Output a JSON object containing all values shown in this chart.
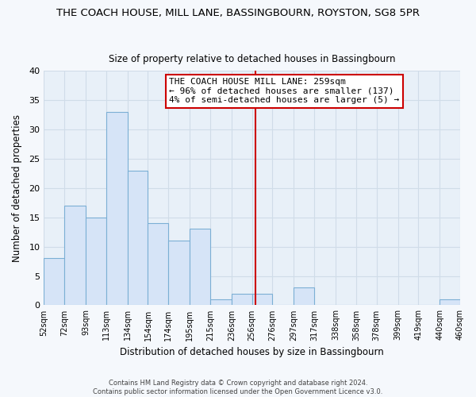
{
  "title": "THE COACH HOUSE, MILL LANE, BASSINGBOURN, ROYSTON, SG8 5PR",
  "subtitle": "Size of property relative to detached houses in Bassingbourn",
  "xlabel": "Distribution of detached houses by size in Bassingbourn",
  "ylabel": "Number of detached properties",
  "bar_edges": [
    52,
    72,
    93,
    113,
    134,
    154,
    174,
    195,
    215,
    236,
    256,
    276,
    297,
    317,
    338,
    358,
    378,
    399,
    419,
    440,
    460
  ],
  "bar_heights": [
    8,
    17,
    15,
    33,
    23,
    14,
    11,
    13,
    1,
    2,
    2,
    0,
    3,
    0,
    0,
    0,
    0,
    0,
    0,
    1
  ],
  "bar_color": "#d6e4f7",
  "bar_edge_color": "#7bafd4",
  "vline_x": 259,
  "vline_color": "#cc0000",
  "annotation_line1": "THE COACH HOUSE MILL LANE: 259sqm",
  "annotation_line2": "← 96% of detached houses are smaller (137)",
  "annotation_line3": "4% of semi-detached houses are larger (5) →",
  "annotation_box_color": "#ffffff",
  "annotation_box_edge": "#cc0000",
  "xlim": [
    52,
    460
  ],
  "ylim": [
    0,
    40
  ],
  "yticks": [
    0,
    5,
    10,
    15,
    20,
    25,
    30,
    35,
    40
  ],
  "xtick_labels": [
    "52sqm",
    "72sqm",
    "93sqm",
    "113sqm",
    "134sqm",
    "154sqm",
    "174sqm",
    "195sqm",
    "215sqm",
    "236sqm",
    "256sqm",
    "276sqm",
    "297sqm",
    "317sqm",
    "338sqm",
    "358sqm",
    "378sqm",
    "399sqm",
    "419sqm",
    "440sqm",
    "460sqm"
  ],
  "grid_color": "#d0dce8",
  "plot_bg_color": "#e8f0f8",
  "fig_bg_color": "#f5f8fc",
  "footer_text": "Contains HM Land Registry data © Crown copyright and database right 2024.\nContains public sector information licensed under the Open Government Licence v3.0.",
  "title_fontsize": 9.5,
  "subtitle_fontsize": 8.5,
  "xlabel_fontsize": 8.5,
  "ylabel_fontsize": 8.5,
  "tick_fontsize": 7,
  "ytick_fontsize": 8,
  "annotation_fontsize": 8,
  "footer_fontsize": 6
}
